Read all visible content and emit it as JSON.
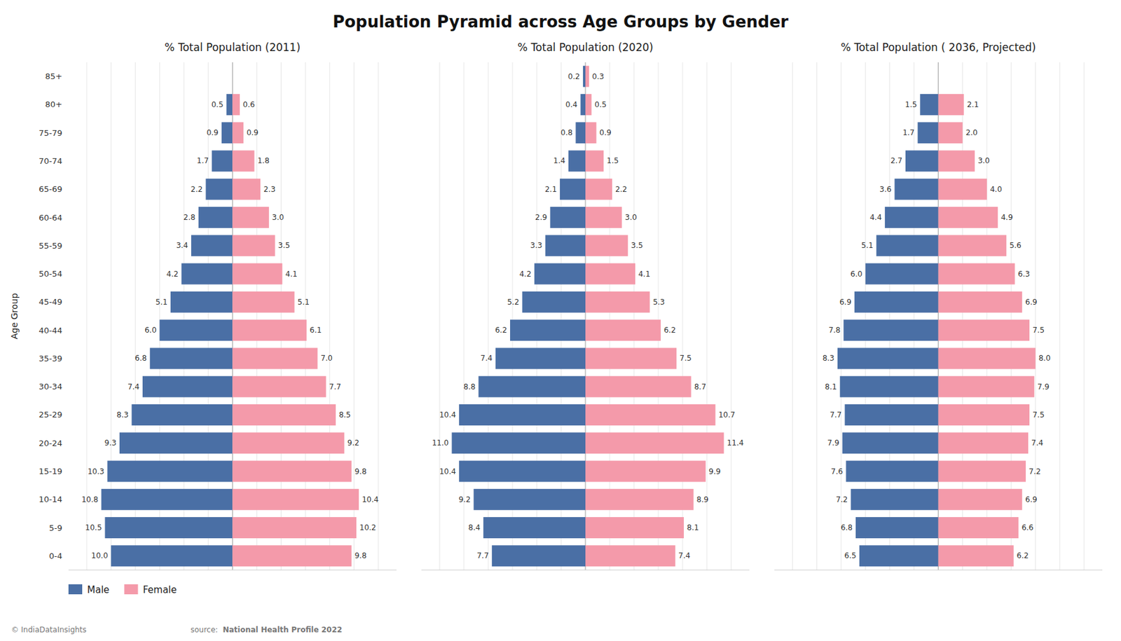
{
  "title": "Population Pyramid across Age Groups by Gender",
  "annotations": [
    "© IndiaDataInsights",
    "source: ",
    "National Health Profile 2022"
  ],
  "chart_data": [
    {
      "type": "pyramid",
      "orientation": "horizontal",
      "title": "% Total Population (2011)",
      "ylabel": "Age Group",
      "categories": [
        "0-4",
        "5-9",
        "10-14",
        "15-19",
        "20-24",
        "25-29",
        "30-34",
        "35-39",
        "40-44",
        "45-49",
        "50-54",
        "55-59",
        "60-64",
        "65-69",
        "70-74",
        "75-79",
        "80+",
        "85+"
      ],
      "series": [
        {
          "name": "Male",
          "color": "#4a6fa5",
          "values": [
            10.0,
            10.5,
            10.8,
            10.3,
            9.3,
            8.3,
            7.4,
            6.8,
            6.0,
            5.1,
            4.2,
            3.4,
            2.8,
            2.2,
            1.7,
            0.9,
            0.5,
            0.0
          ],
          "value_labels": [
            "10.0",
            "10.5",
            "10.8",
            "10.3",
            "9.3",
            "8.3",
            "7.4",
            "6.8",
            "6.0",
            "5.1",
            "4.2",
            "3.4",
            "2.8",
            "2.2",
            "1.7",
            "0.9",
            "0.5",
            null
          ]
        },
        {
          "name": "Female",
          "color": "#f49aaa",
          "values": [
            9.8,
            10.2,
            10.4,
            9.8,
            9.2,
            8.5,
            7.7,
            7.0,
            6.1,
            5.1,
            4.1,
            3.5,
            3.0,
            2.3,
            1.8,
            0.9,
            0.6,
            0.0
          ],
          "value_labels": [
            "9.8",
            "10.2",
            "10.4",
            "9.8",
            "9.2",
            "8.5",
            "7.7",
            "7.0",
            "6.1",
            "5.1",
            "4.1",
            "3.5",
            "3.0",
            "2.3",
            "1.8",
            "0.9",
            "0.6",
            null
          ]
        }
      ],
      "xlim": [
        -13.5,
        13.5
      ],
      "xticks": [
        -12,
        -10,
        -8,
        -6,
        -4,
        -2,
        0,
        2,
        4,
        6,
        8,
        10,
        12
      ],
      "grid": true,
      "data_labels": true,
      "tick_labels": "y",
      "legend": "bottom"
    },
    {
      "type": "pyramid",
      "orientation": "horizontal",
      "title": "% Total Population (2020)",
      "categories": [
        "0-4",
        "5-9",
        "10-14",
        "15-19",
        "20-24",
        "25-29",
        "30-34",
        "35-39",
        "40-44",
        "45-49",
        "50-54",
        "55-59",
        "60-64",
        "65-69",
        "70-74",
        "75-79",
        "80+",
        "85+"
      ],
      "series": [
        {
          "name": "Male",
          "color": "#4a6fa5",
          "values": [
            7.7,
            8.4,
            9.2,
            10.4,
            11.0,
            10.4,
            8.8,
            7.4,
            6.2,
            5.2,
            4.2,
            3.3,
            2.9,
            2.1,
            1.4,
            0.8,
            0.4,
            0.2
          ],
          "value_labels": [
            "7.7",
            "8.4",
            "9.2",
            "10.4",
            "11.0",
            "10.4",
            "8.8",
            "7.4",
            "6.2",
            "5.2",
            "4.2",
            "3.3",
            "2.9",
            "2.1",
            "1.4",
            "0.8",
            "0.4",
            "0.2"
          ]
        },
        {
          "name": "Female",
          "color": "#f49aaa",
          "values": [
            7.4,
            8.1,
            8.9,
            9.9,
            11.4,
            10.7,
            8.7,
            7.5,
            6.2,
            5.3,
            4.1,
            3.5,
            3.0,
            2.2,
            1.5,
            0.9,
            0.5,
            0.3
          ],
          "value_labels": [
            "7.4",
            "8.1",
            "8.9",
            "9.9",
            "11.4",
            "10.7",
            "8.7",
            "7.5",
            "6.2",
            "5.3",
            "4.1",
            "3.5",
            "3.0",
            "2.2",
            "1.5",
            "0.9",
            "0.5",
            "0.3"
          ]
        }
      ],
      "xlim": [
        -13.5,
        13.5
      ],
      "xticks": [
        -12,
        -10,
        -8,
        -6,
        -4,
        -2,
        0,
        2,
        4,
        6,
        8,
        10,
        12
      ],
      "grid": true,
      "data_labels": true,
      "tick_labels": false
    },
    {
      "type": "pyramid",
      "orientation": "horizontal",
      "title": "% Total Population ( 2036, Projected)",
      "categories": [
        "0-4",
        "5-9",
        "10-14",
        "15-19",
        "20-24",
        "25-29",
        "30-34",
        "35-39",
        "40-44",
        "45-49",
        "50-54",
        "55-59",
        "60-64",
        "65-69",
        "70-74",
        "75-79",
        "80+",
        "85+"
      ],
      "series": [
        {
          "name": "Male",
          "color": "#4a6fa5",
          "values": [
            6.5,
            6.8,
            7.2,
            7.6,
            7.9,
            7.7,
            8.1,
            8.3,
            7.8,
            6.9,
            6.0,
            5.1,
            4.4,
            3.6,
            2.7,
            1.7,
            1.5,
            0.0
          ],
          "value_labels": [
            "6.5",
            "6.8",
            "7.2",
            "7.6",
            "7.9",
            "7.7",
            "8.1",
            "8.3",
            "7.8",
            "6.9",
            "6.0",
            "5.1",
            "4.4",
            "3.6",
            "2.7",
            "1.7",
            "1.5",
            null
          ]
        },
        {
          "name": "Female",
          "color": "#f49aaa",
          "values": [
            6.2,
            6.6,
            6.9,
            7.2,
            7.4,
            7.5,
            7.9,
            8.0,
            7.5,
            6.9,
            6.3,
            5.6,
            4.9,
            4.0,
            3.0,
            2.0,
            2.1,
            0.0
          ],
          "value_labels": [
            "6.2",
            "6.6",
            "6.9",
            "7.2",
            "7.4",
            "7.5",
            "7.9",
            "8.0",
            "7.5",
            "6.9",
            "6.3",
            "5.6",
            "4.9",
            "4.0",
            "3.0",
            "2.0",
            "2.1",
            null
          ]
        }
      ],
      "xlim": [
        -13.5,
        13.5
      ],
      "xticks": [
        -12,
        -10,
        -8,
        -6,
        -4,
        -2,
        0,
        2,
        4,
        6,
        8,
        10,
        12
      ],
      "grid": true,
      "data_labels": true,
      "tick_labels": false
    }
  ]
}
